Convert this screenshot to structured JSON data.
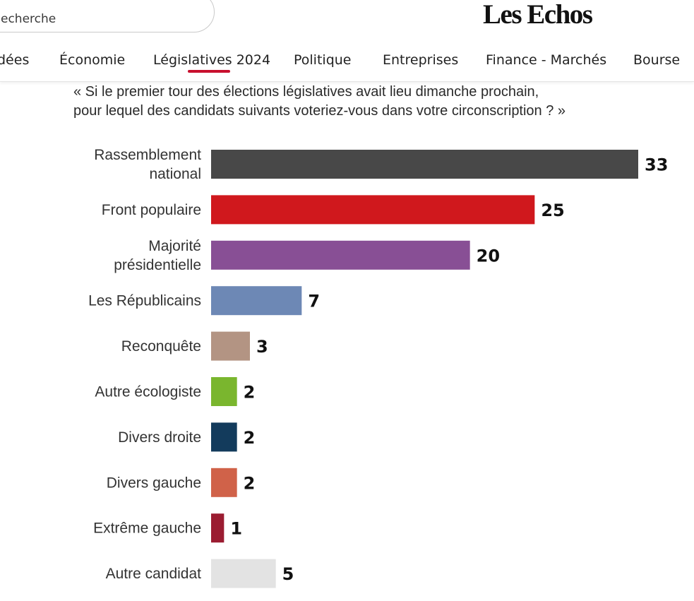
{
  "header": {
    "search": {
      "text": "echerche"
    },
    "logo": "Les Echos",
    "nav": [
      {
        "label": "dées"
      },
      {
        "label": "Économie"
      },
      {
        "label": "Législatives 2024",
        "active": true
      },
      {
        "label": "Politique"
      },
      {
        "label": "Entreprises"
      },
      {
        "label": "Finance - Marchés"
      },
      {
        "label": "Bourse"
      }
    ],
    "accent_color": "#c8102e"
  },
  "chart_data": {
    "type": "bar",
    "orientation": "horizontal",
    "title_lines": [
      "« Si le premier tour des élections législatives avait lieu dimanche prochain,",
      "pour lequel des candidats suivants voteriez-vous dans votre circonscription ? »"
    ],
    "categories": [
      [
        "Rassemblement",
        "national"
      ],
      [
        "Front populaire"
      ],
      [
        "Majorité",
        "présidentielle"
      ],
      [
        "Les Républicains"
      ],
      [
        "Reconquête"
      ],
      [
        "Autre écologiste"
      ],
      [
        "Divers droite"
      ],
      [
        "Divers gauche"
      ],
      [
        "Extrême gauche"
      ],
      [
        "Autre candidat"
      ]
    ],
    "values": [
      33,
      25,
      20,
      7,
      3,
      2,
      2,
      2,
      1,
      5
    ],
    "colors": [
      "#484848",
      "#d0181d",
      "#884f95",
      "#6d88b5",
      "#b39483",
      "#7ab62e",
      "#133b5c",
      "#d06249",
      "#9b1c31",
      "#e3e3e3"
    ],
    "xlim": [
      0,
      33
    ],
    "unit": "%"
  }
}
